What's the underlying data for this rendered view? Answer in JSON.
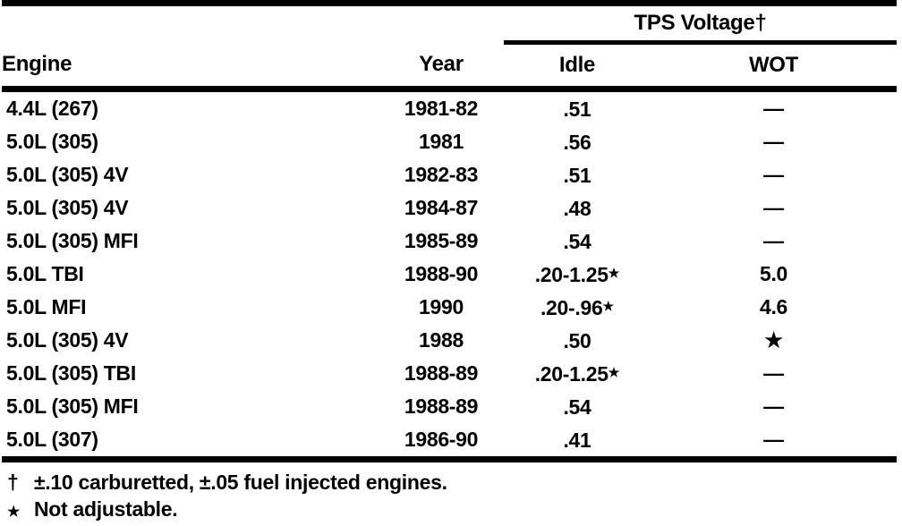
{
  "page": {
    "background": "#ffffff",
    "text_color": "#000000"
  },
  "table": {
    "group_header": "TPS Voltage†",
    "columns": {
      "engine": "Engine",
      "year": "Year",
      "idle": "Idle",
      "wot": "WOT"
    },
    "rows": [
      {
        "engine": "4.4L (267)",
        "year": "1981-82",
        "idle": ".51",
        "wot": "—"
      },
      {
        "engine": "5.0L (305)",
        "year": "1981",
        "idle": ".56",
        "wot": "—"
      },
      {
        "engine": "5.0L (305) 4V",
        "year": "1982-83",
        "idle": ".51",
        "wot": "—"
      },
      {
        "engine": "5.0L (305) 4V",
        "year": "1984-87",
        "idle": ".48",
        "wot": "—"
      },
      {
        "engine": "5.0L (305) MFI",
        "year": "1985-89",
        "idle": ".54",
        "wot": "—"
      },
      {
        "engine": "5.0L TBI",
        "year": "1988-90",
        "idle": ".20-1.25",
        "idle_mark": "★",
        "wot": "5.0"
      },
      {
        "engine": "5.0L MFI",
        "year": "1990",
        "idle": ".20-.96",
        "idle_mark": "★",
        "wot": "4.6"
      },
      {
        "engine": "5.0L (305) 4V",
        "year": "1988",
        "idle": ".50",
        "wot": "★"
      },
      {
        "engine": "5.0L (305) TBI",
        "year": "1988-89",
        "idle": ".20-1.25",
        "idle_mark": "★",
        "wot": "—"
      },
      {
        "engine": "5.0L (305) MFI",
        "year": "1988-89",
        "idle": ".54",
        "wot": "—"
      },
      {
        "engine": "5.0L (307)",
        "year": "1986-90",
        "idle": ".41",
        "wot": "—"
      }
    ]
  },
  "footnotes": [
    {
      "marker": "†",
      "text": "±.10 carburetted, ±.05 fuel injected engines."
    },
    {
      "marker": "★",
      "text": "Not adjustable."
    }
  ]
}
